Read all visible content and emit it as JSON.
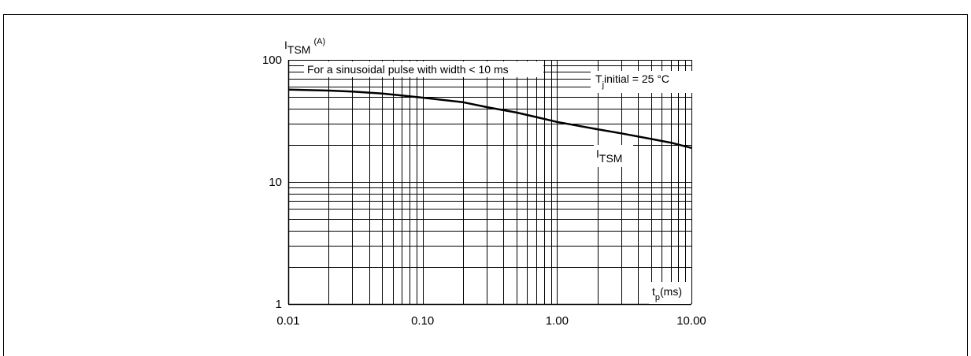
{
  "chart_data": {
    "type": "line",
    "x_scale": "log",
    "y_scale": "log",
    "xlim": [
      0.01,
      10
    ],
    "ylim": [
      1,
      100
    ],
    "grid": true,
    "x_ticks": [
      {
        "value": 0.01,
        "label": "0.01"
      },
      {
        "value": 0.1,
        "label": "0.10"
      },
      {
        "value": 1,
        "label": "1.00"
      },
      {
        "value": 10,
        "label": "10.00"
      }
    ],
    "y_ticks": [
      {
        "value": 100,
        "label": "100"
      },
      {
        "value": 10,
        "label": "10"
      },
      {
        "value": 1,
        "label": "1"
      }
    ],
    "ylabel": {
      "main": "I",
      "sub": "TSM",
      "sup": "(A)"
    },
    "xlabel": {
      "main": "t",
      "sub": "p",
      "rest": "(ms)"
    },
    "series": [
      {
        "name": "I_TSM",
        "label": {
          "main": "I",
          "sub": "TSM"
        },
        "x": [
          0.01,
          0.02,
          0.03,
          0.05,
          0.07,
          0.1,
          0.2,
          0.3,
          0.5,
          0.7,
          1,
          2,
          3,
          5,
          7,
          10
        ],
        "y": [
          57,
          56,
          55,
          53,
          51,
          49,
          45,
          41,
          37,
          34,
          31,
          27,
          25,
          22.5,
          21,
          19
        ]
      }
    ],
    "annotations": [
      {
        "text": "For a sinusoidal pulse with width < 10 ms"
      },
      {
        "main": "T",
        "sub": "j",
        "rest": "initial = 25 °C"
      }
    ]
  }
}
